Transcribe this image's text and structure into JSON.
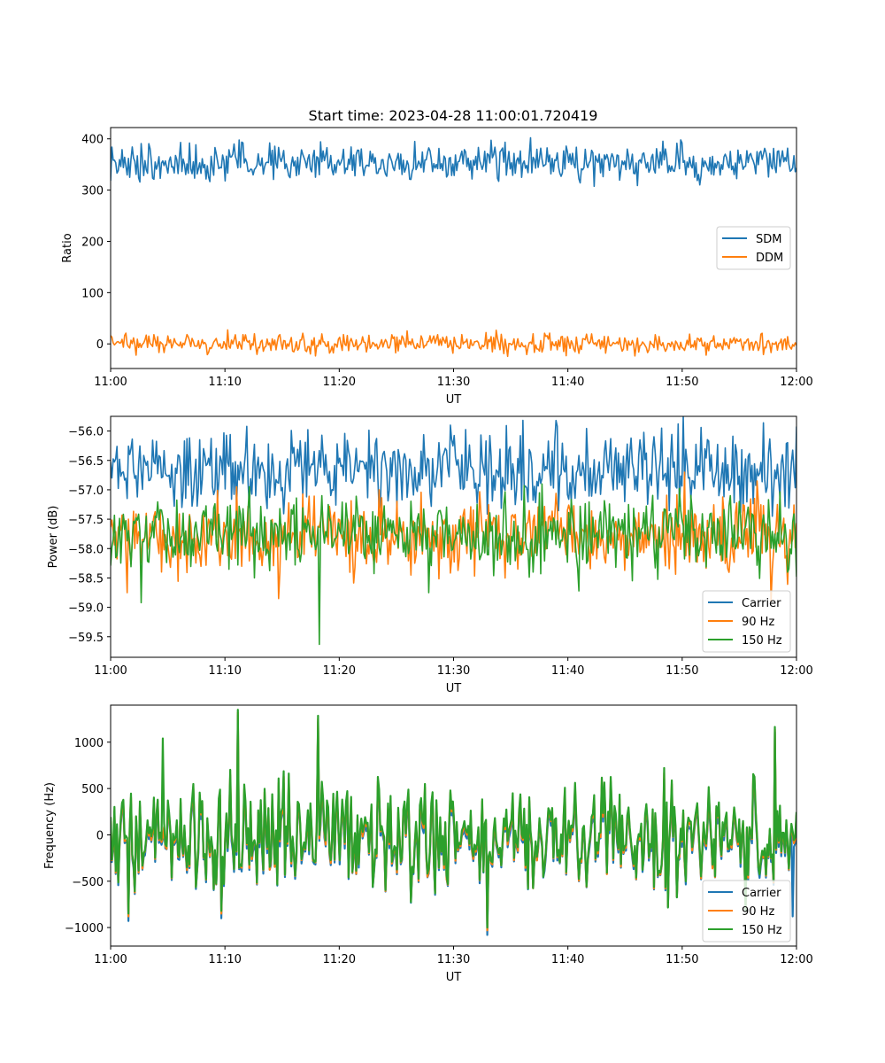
{
  "figure": {
    "title": "Start time: 2023-04-28 11:00:01.720419"
  },
  "colors": {
    "blue": "#1f77b4",
    "orange": "#ff7f0e",
    "green": "#2ca02c"
  },
  "chart_data": [
    {
      "type": "line",
      "xlabel": "UT",
      "ylabel": "Ratio",
      "xlim": [
        "11:00",
        "12:00"
      ],
      "ylim": [
        -48,
        422
      ],
      "x_ticks": [
        "11:00",
        "11:10",
        "11:20",
        "11:30",
        "11:40",
        "11:50",
        "12:00"
      ],
      "y_ticks": [
        0,
        100,
        200,
        300,
        400
      ],
      "y_tick_labels": [
        "0",
        "100",
        "200",
        "300",
        "400"
      ],
      "legend": "center-right",
      "series": [
        {
          "name": "SDM",
          "color": "#1f77b4",
          "mean": 355,
          "amplitude": 16,
          "peaks": [
            [
              36.7,
              402
            ],
            [
              49.9,
              398
            ],
            [
              13.9,
              392
            ],
            [
              11.6,
              392
            ],
            [
              2.5,
              380
            ]
          ],
          "troughs": [
            [
              46.1,
              309
            ],
            [
              10.0,
              318
            ],
            [
              2.4,
              324
            ],
            [
              33.8,
              323
            ]
          ]
        },
        {
          "name": "DDM",
          "color": "#ff7f0e",
          "mean": 0,
          "amplitude": 9,
          "peaks": [
            [
              1.3,
              21
            ],
            [
              38.4,
              21
            ],
            [
              28.6,
              18
            ],
            [
              56.9,
              19
            ]
          ],
          "troughs": [
            [
              2.2,
              -22
            ],
            [
              8.5,
              -21
            ],
            [
              39.8,
              -23
            ],
            [
              52.1,
              -22
            ]
          ]
        }
      ]
    },
    {
      "type": "line",
      "xlabel": "UT",
      "ylabel": "Power (dB)",
      "xlim": [
        "11:00",
        "12:00"
      ],
      "ylim": [
        -59.85,
        -55.75
      ],
      "x_ticks": [
        "11:00",
        "11:10",
        "11:20",
        "11:30",
        "11:40",
        "11:50",
        "12:00"
      ],
      "y_ticks": [
        -56.0,
        -56.5,
        -57.0,
        -57.5,
        -58.0,
        -58.5,
        -59.0,
        -59.5
      ],
      "y_tick_labels": [
        "−56.0",
        "−56.5",
        "−57.0",
        "−57.5",
        "−58.0",
        "−58.5",
        "−59.0",
        "−59.5"
      ],
      "legend": "lower-right",
      "series": [
        {
          "name": "Carrier",
          "color": "#1f77b4",
          "mean": -56.65,
          "amplitude": 0.3,
          "peaks": [
            [
              39.0,
              -55.82
            ],
            [
              11.9,
              -55.92
            ],
            [
              29.7,
              -55.9
            ],
            [
              48.2,
              -55.95
            ]
          ],
          "troughs": [
            [
              6.2,
              -57.3
            ],
            [
              23.5,
              -57.35
            ],
            [
              57.9,
              -57.45
            ],
            [
              45.0,
              -57.2
            ]
          ]
        },
        {
          "name": "90 Hz",
          "color": "#ff7f0e",
          "mean": -57.8,
          "amplitude": 0.28,
          "peaks": [
            [
              11.0,
              -56.95
            ],
            [
              23.5,
              -57.0
            ],
            [
              50.2,
              -56.7
            ],
            [
              56.5,
              -56.85
            ]
          ],
          "troughs": [
            [
              14.7,
              -58.85
            ],
            [
              1.5,
              -58.75
            ],
            [
              57.8,
              -58.9
            ],
            [
              34.5,
              -58.5
            ]
          ]
        },
        {
          "name": "150 Hz",
          "color": "#2ca02c",
          "mean": -57.75,
          "amplitude": 0.28,
          "peaks": [
            [
              12.1,
              -56.95
            ],
            [
              37.5,
              -57.05
            ],
            [
              18.5,
              -57.1
            ],
            [
              54.2,
              -57.1
            ]
          ],
          "troughs": [
            [
              18.3,
              -59.63
            ],
            [
              2.7,
              -58.92
            ],
            [
              27.8,
              -58.75
            ],
            [
              41.0,
              -58.72
            ]
          ]
        }
      ]
    },
    {
      "type": "line",
      "xlabel": "UT",
      "ylabel": "Frequency (Hz)",
      "xlim": [
        "11:00",
        "12:00"
      ],
      "ylim": [
        -1200,
        1400
      ],
      "x_ticks": [
        "11:00",
        "11:10",
        "11:20",
        "11:30",
        "11:40",
        "11:50",
        "12:00"
      ],
      "y_ticks": [
        1000,
        500,
        0,
        -500,
        -1000
      ],
      "y_tick_labels": [
        "1000",
        "500",
        "0",
        "−500",
        "−1000"
      ],
      "legend": "lower-right",
      "series": [
        {
          "name": "Carrier",
          "color": "#1f77b4",
          "offset": -60,
          "peaks": [
            [
              11.1,
              1290
            ],
            [
              18.2,
              1220
            ],
            [
              58.1,
              1110
            ]
          ],
          "troughs": [
            [
              32.9,
              -1080
            ],
            [
              1.6,
              -930
            ],
            [
              9.7,
              -900
            ],
            [
              59.7,
              -880
            ]
          ]
        },
        {
          "name": "90 Hz",
          "color": "#ff7f0e",
          "offset": -25,
          "peaks": [
            [
              11.1,
              1320
            ],
            [
              18.2,
              1250
            ],
            [
              58.1,
              1140
            ]
          ],
          "troughs": [
            [
              32.9,
              -1030
            ],
            [
              1.6,
              -880
            ],
            [
              9.7,
              -850
            ]
          ]
        },
        {
          "name": "150 Hz",
          "color": "#2ca02c",
          "offset": 0,
          "peaks": [
            [
              11.1,
              1350
            ],
            [
              18.2,
              1285
            ],
            [
              58.1,
              1165
            ],
            [
              4.6,
              1040
            ]
          ],
          "troughs": [
            [
              32.9,
              -1000
            ],
            [
              1.6,
              -850
            ],
            [
              9.7,
              -820
            ]
          ]
        }
      ]
    }
  ]
}
